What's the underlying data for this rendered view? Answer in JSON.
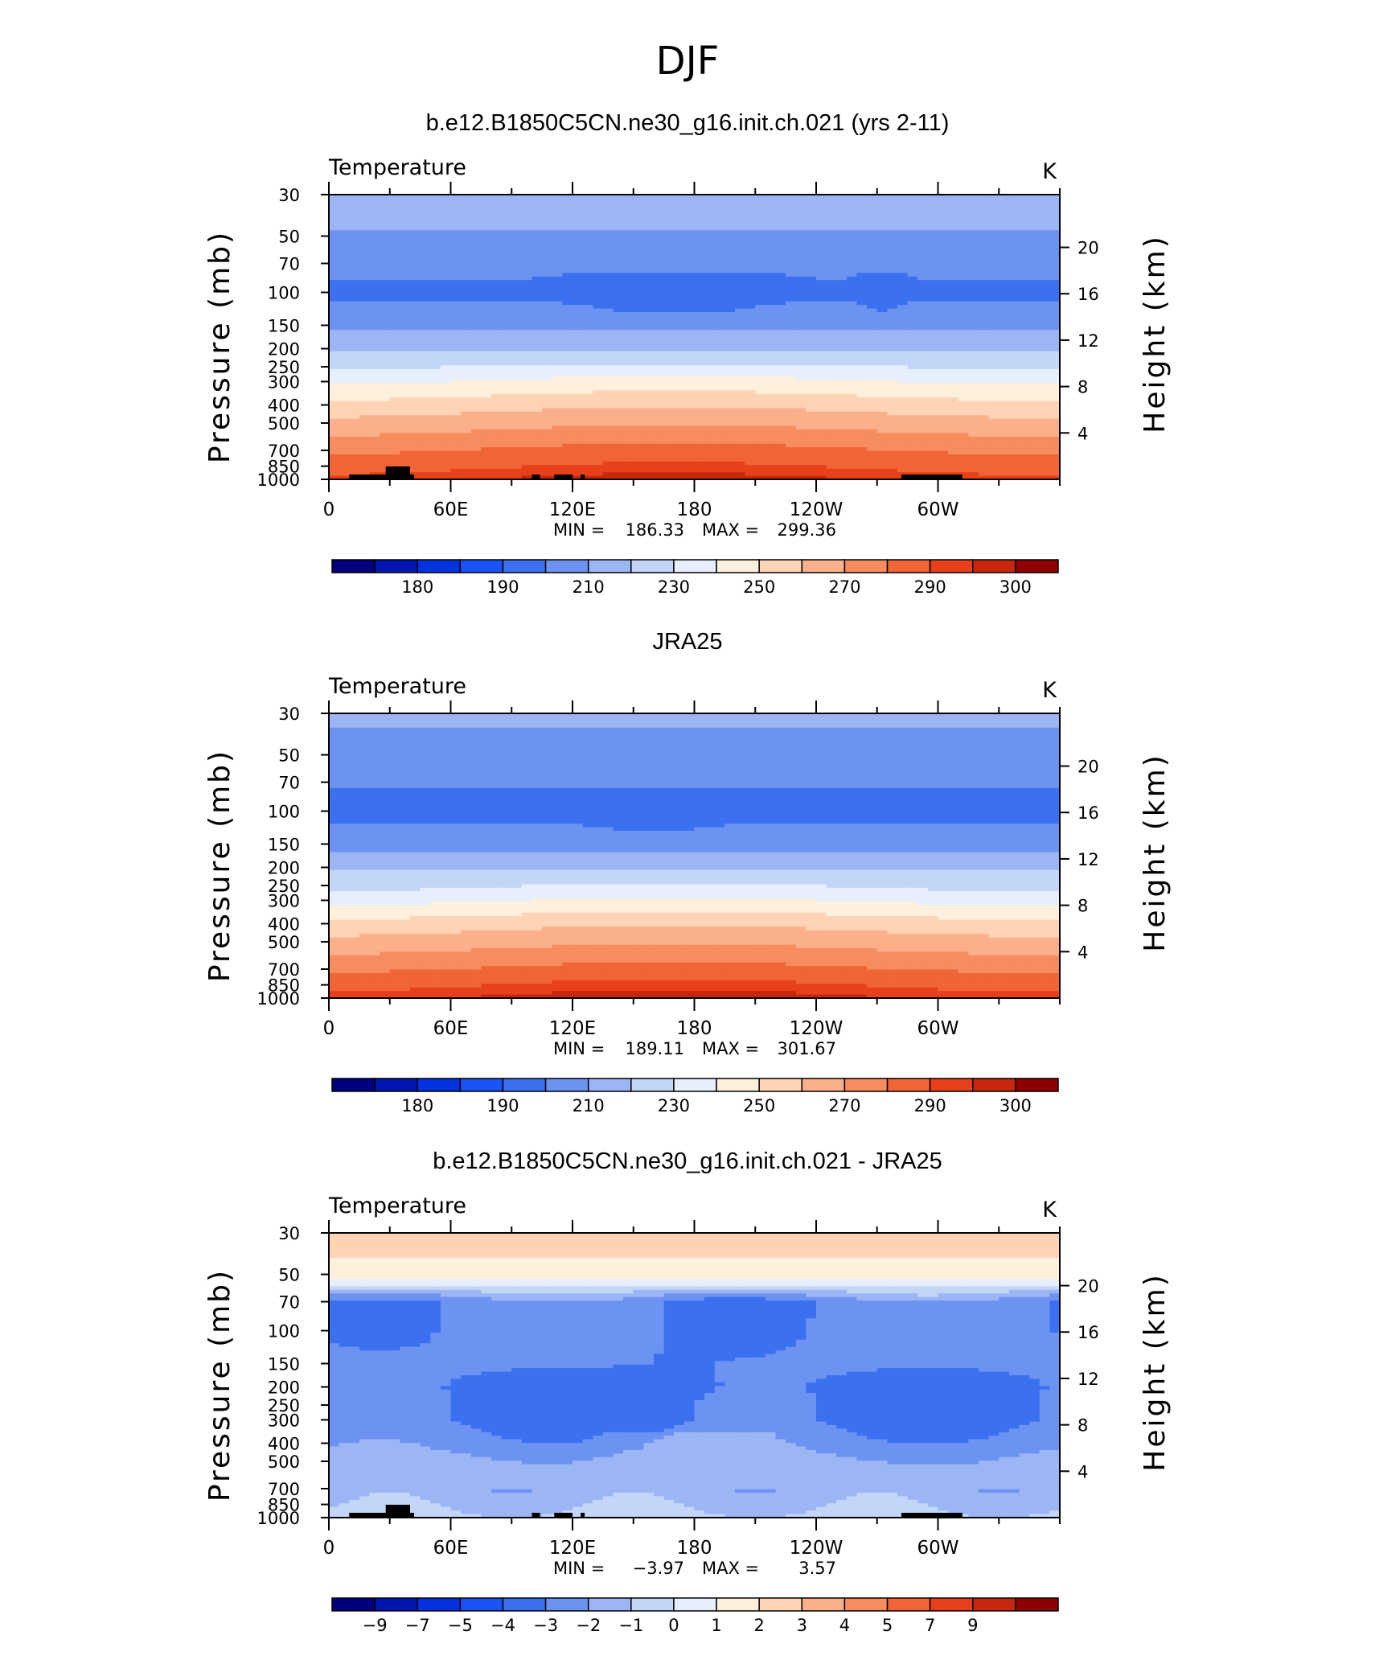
{
  "figure": {
    "suptitle": "DJF",
    "colors": {
      "temperature_scale": [
        "#00007f",
        "#0015b0",
        "#0033e0",
        "#1a53f5",
        "#3b70f0",
        "#6d93f2",
        "#9cb6f5",
        "#c4d6f8",
        "#e6effb",
        "#fff0dd",
        "#ffd3b4",
        "#fbaf8a",
        "#f78c5f",
        "#f06436",
        "#e8401a",
        "#c7280d",
        "#8f0000"
      ]
    }
  },
  "chart_data": [
    {
      "type": "heatmap",
      "title": "b.e12.B1850C5CN.ne30_g16.init.ch.021 (yrs 2-11)",
      "variable": "Temperature",
      "units": "K",
      "ylabel": "Pressure (mb)",
      "y2label": "Height (km)",
      "x_ticks": [
        "0",
        "60E",
        "120E",
        "180",
        "120W",
        "60W"
      ],
      "y_ticks": [
        "30",
        "50",
        "70",
        "100",
        "150",
        "200",
        "250",
        "300",
        "400",
        "500",
        "700",
        "850",
        "1000"
      ],
      "y2_ticks": [
        "20",
        "16",
        "12",
        "8",
        "4"
      ],
      "min_label": "MIN =",
      "min_value": "186.33",
      "max_label": "MAX =",
      "max_value": "299.36",
      "colorbar_labels": [
        "180",
        "190",
        "210",
        "230",
        "250",
        "270",
        "290",
        "300"
      ],
      "contour_levels": [
        175,
        180,
        185,
        190,
        200,
        210,
        220,
        230,
        240,
        250,
        260,
        270,
        280,
        290,
        295,
        300
      ],
      "profile_pressure_mb": [
        30,
        50,
        70,
        100,
        150,
        200,
        250,
        300,
        400,
        500,
        700,
        850,
        1000
      ],
      "profile_temperature_k": [
        216,
        209,
        203,
        198,
        207,
        219,
        231,
        241,
        256,
        266,
        281,
        289,
        295
      ],
      "topography": true
    },
    {
      "type": "heatmap",
      "title": "JRA25",
      "variable": "Temperature",
      "units": "K",
      "ylabel": "Pressure (mb)",
      "y2label": "Height (km)",
      "x_ticks": [
        "0",
        "60E",
        "120E",
        "180",
        "120W",
        "60W"
      ],
      "y_ticks": [
        "30",
        "50",
        "70",
        "100",
        "150",
        "200",
        "250",
        "300",
        "400",
        "500",
        "700",
        "850",
        "1000"
      ],
      "y2_ticks": [
        "20",
        "16",
        "12",
        "8",
        "4"
      ],
      "min_label": "MIN =",
      "min_value": "189.11",
      "max_label": "MAX =",
      "max_value": "301.67",
      "colorbar_labels": [
        "180",
        "190",
        "210",
        "230",
        "250",
        "270",
        "290",
        "300"
      ],
      "contour_levels": [
        175,
        180,
        185,
        190,
        200,
        210,
        220,
        230,
        240,
        250,
        260,
        270,
        280,
        290,
        295,
        300
      ],
      "profile_pressure_mb": [
        30,
        50,
        70,
        100,
        150,
        200,
        250,
        300,
        400,
        500,
        700,
        850,
        1000
      ],
      "profile_temperature_k": [
        212,
        206,
        201,
        197,
        206,
        218,
        229,
        239,
        256,
        266,
        281,
        290,
        296
      ],
      "topography": false
    },
    {
      "type": "heatmap",
      "title": "b.e12.B1850C5CN.ne30_g16.init.ch.021 - JRA25",
      "variable": "Temperature",
      "units": "K",
      "ylabel": "Pressure (mb)",
      "y2label": "Height (km)",
      "x_ticks": [
        "0",
        "60E",
        "120E",
        "180",
        "120W",
        "60W"
      ],
      "y_ticks": [
        "30",
        "50",
        "70",
        "100",
        "150",
        "200",
        "250",
        "300",
        "400",
        "500",
        "700",
        "850",
        "1000"
      ],
      "y2_ticks": [
        "20",
        "16",
        "12",
        "8",
        "4"
      ],
      "min_label": "MIN =",
      "min_value": "−3.97",
      "max_label": "MAX =",
      "max_value": "3.57",
      "colorbar_labels": [
        "−9",
        "−7",
        "−5",
        "−4",
        "−3",
        "−2",
        "−1",
        "0",
        "1",
        "2",
        "3",
        "4",
        "5",
        "7",
        "9"
      ],
      "contour_levels": [
        -9,
        -7,
        -5,
        -4,
        -3,
        -2,
        -1,
        0,
        1,
        2,
        3,
        4,
        5,
        7,
        9
      ],
      "profile_pressure_mb": [
        30,
        50,
        70,
        100,
        150,
        200,
        250,
        300,
        400,
        500,
        700,
        850,
        1000
      ],
      "profile_diff_k": [
        2.6,
        1.6,
        -2.7,
        -2.7,
        -2.8,
        -3.2,
        -3.2,
        -3.2,
        -2.5,
        -1.8,
        -1.6,
        -1.2,
        -0.6
      ],
      "topography": true
    }
  ]
}
